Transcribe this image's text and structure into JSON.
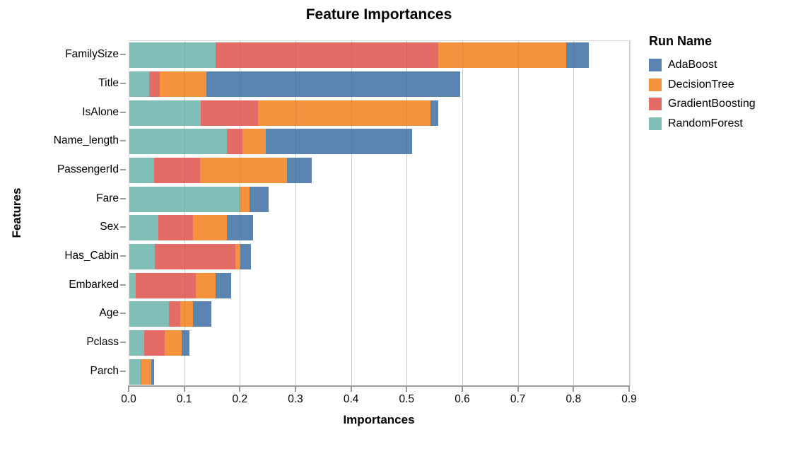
{
  "title": "Feature Importances",
  "axes": {
    "x_title": "Importances",
    "y_title": "Features"
  },
  "legend": {
    "title": "Run Name",
    "entries": [
      "AdaBoost",
      "DecisionTree",
      "GradientBoosting",
      "RandomForest"
    ]
  },
  "chart_data": {
    "type": "bar",
    "orientation": "horizontal",
    "stacked": true,
    "title": "Feature Importances",
    "xlabel": "Importances",
    "ylabel": "Features",
    "xlim": [
      0,
      0.9
    ],
    "x_ticks": [
      0.0,
      0.1,
      0.2,
      0.3,
      0.4,
      0.5,
      0.6,
      0.7,
      0.8,
      0.9
    ],
    "grid": true,
    "legend_position": "right",
    "legend_title": "Run Name",
    "categories": [
      "FamilySize",
      "Title",
      "IsAlone",
      "Name_length",
      "PassengerId",
      "Fare",
      "Sex",
      "Has_Cabin",
      "Embarked",
      "Age",
      "Pclass",
      "Parch"
    ],
    "series": [
      {
        "name": "RandomForest",
        "color": "#7fbfb8",
        "values": [
          0.155,
          0.035,
          0.129,
          0.175,
          0.045,
          0.198,
          0.052,
          0.046,
          0.011,
          0.071,
          0.027,
          0.02
        ]
      },
      {
        "name": "GradientBoosting",
        "color": "#e56b66",
        "values": [
          0.401,
          0.02,
          0.102,
          0.028,
          0.082,
          0.001,
          0.062,
          0.145,
          0.109,
          0.021,
          0.037,
          0.001
        ]
      },
      {
        "name": "DecisionTree",
        "color": "#f5923e",
        "values": [
          0.229,
          0.083,
          0.311,
          0.042,
          0.157,
          0.017,
          0.061,
          0.009,
          0.035,
          0.022,
          0.03,
          0.018
        ]
      },
      {
        "name": "AdaBoost",
        "color": "#5b84b1",
        "values": [
          0.041,
          0.457,
          0.014,
          0.264,
          0.044,
          0.035,
          0.048,
          0.019,
          0.028,
          0.034,
          0.014,
          0.006
        ]
      }
    ],
    "totals": [
      0.826,
      0.595,
      0.556,
      0.509,
      0.328,
      0.251,
      0.223,
      0.219,
      0.183,
      0.148,
      0.108,
      0.045
    ]
  }
}
